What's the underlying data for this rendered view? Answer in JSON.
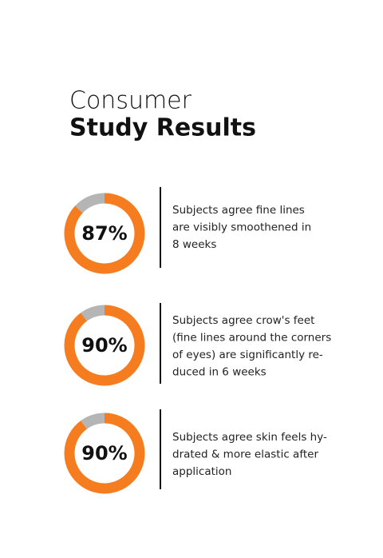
{
  "header": {
    "title_light": "Consumer",
    "title_bold": "Study Results"
  },
  "chart_data": [
    {
      "type": "donut",
      "values": [
        87,
        13
      ],
      "value_labels": [
        "87%",
        null
      ],
      "colors": [
        "#f57c1f",
        "#b5b5b5"
      ],
      "description": [
        "Subjects agree fine lines",
        "are visibly smoothened in",
        "8 weeks"
      ]
    },
    {
      "type": "donut",
      "values": [
        90,
        10
      ],
      "value_labels": [
        "90%",
        null
      ],
      "colors": [
        "#f57c1f",
        "#b5b5b5"
      ],
      "description": [
        "Subjects agree crow's feet",
        "(fine lines around the corners",
        "of eyes) are significantly re-",
        "duced in 6 weeks"
      ]
    },
    {
      "type": "donut",
      "values": [
        90,
        10
      ],
      "value_labels": [
        "90%",
        null
      ],
      "colors": [
        "#f57c1f",
        "#b5b5b5"
      ],
      "description": [
        "Subjects agree skin feels hy-",
        "drated & more elastic after",
        "application"
      ]
    }
  ]
}
